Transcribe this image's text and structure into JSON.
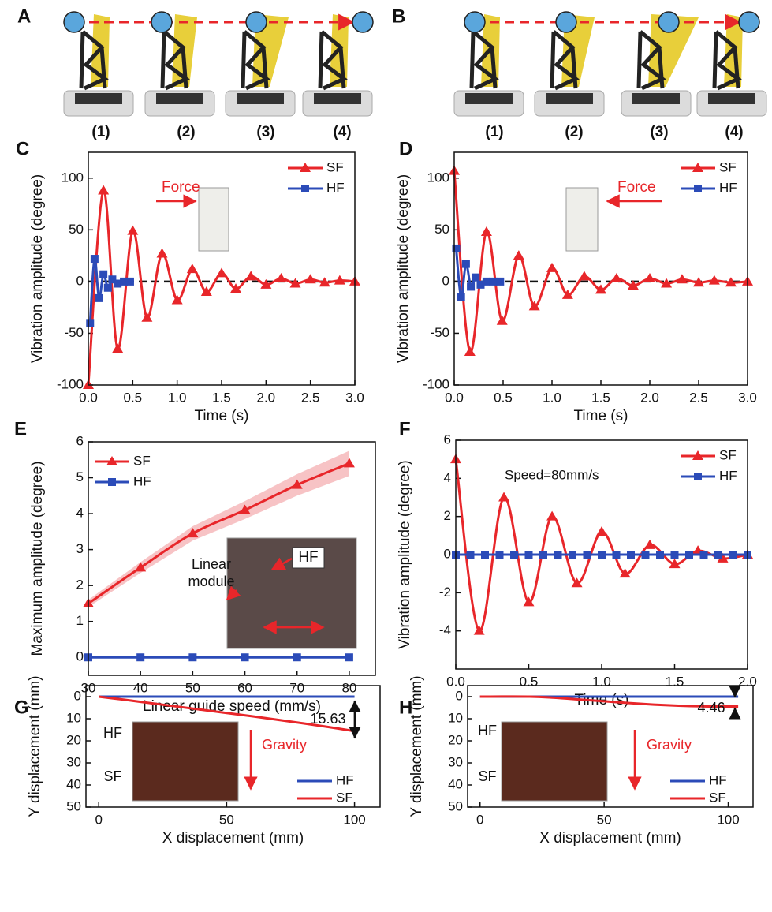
{
  "photo_panels": [
    {
      "label": "A",
      "steps": [
        "(1)",
        "(2)",
        "(3)",
        "(4)"
      ]
    },
    {
      "label": "B",
      "steps": [
        "(1)",
        "(2)",
        "(3)",
        "(4)"
      ]
    }
  ],
  "chart_data": [
    {
      "panel": "C",
      "type": "line",
      "xlabel": "Time (s)",
      "ylabel": "Vibration amplitude (degree)",
      "xlim": [
        0,
        3
      ],
      "xticks": [
        {
          "value": 0,
          "label": "0.0"
        },
        0.5,
        {
          "value": 1,
          "label": "1.0"
        },
        1.5,
        {
          "value": 2,
          "label": "2.0"
        },
        2.5,
        {
          "value": 3,
          "label": "3.0"
        }
      ],
      "ylim": [
        -100,
        125
      ],
      "yticks": [
        -100,
        -50,
        0,
        50,
        100
      ],
      "zero_line": true,
      "legend": "upper right",
      "series": [
        {
          "name": "SF",
          "color": "#e8262a",
          "marker": "triangle",
          "x": [
            0,
            0.17,
            0.33,
            0.5,
            0.66,
            0.83,
            1.0,
            1.17,
            1.33,
            1.5,
            1.66,
            1.83,
            2.0,
            2.17,
            2.33,
            2.5,
            2.66,
            2.83,
            3.0
          ],
          "values": [
            -100,
            88,
            -65,
            49,
            -35,
            27,
            -18,
            12,
            -10,
            8,
            -7,
            5,
            -3,
            3,
            -2,
            2,
            -1,
            1,
            0
          ]
        },
        {
          "name": "HF",
          "color": "#2b4bb8",
          "marker": "square",
          "x": [
            0.02,
            0.07,
            0.12,
            0.17,
            0.22,
            0.27,
            0.33,
            0.4,
            0.47
          ],
          "values": [
            -40,
            22,
            -16,
            7,
            -6,
            2,
            -2,
            0,
            0
          ]
        }
      ],
      "annotations": [
        "Force"
      ]
    },
    {
      "panel": "D",
      "type": "line",
      "xlabel": "Time (s)",
      "ylabel": "Vibration amplitude (degree)",
      "xlim": [
        0,
        3
      ],
      "xticks": [
        {
          "value": 0,
          "label": "0.0"
        },
        0.5,
        {
          "value": 1,
          "label": "1.0"
        },
        1.5,
        {
          "value": 2,
          "label": "2.0"
        },
        2.5,
        {
          "value": 3,
          "label": "3.0"
        }
      ],
      "ylim": [
        -100,
        125
      ],
      "yticks": [
        -100,
        -50,
        0,
        50,
        100
      ],
      "zero_line": true,
      "legend": "upper right",
      "series": [
        {
          "name": "SF",
          "color": "#e8262a",
          "marker": "triangle",
          "x": [
            0,
            0.16,
            0.33,
            0.49,
            0.66,
            0.82,
            1.0,
            1.16,
            1.33,
            1.5,
            1.66,
            1.83,
            2.0,
            2.17,
            2.33,
            2.5,
            2.66,
            2.83,
            3.0
          ],
          "values": [
            107,
            -68,
            48,
            -38,
            25,
            -24,
            13,
            -13,
            5,
            -8,
            3,
            -4,
            3,
            -2,
            2,
            -1,
            1,
            -1,
            0
          ]
        },
        {
          "name": "HF",
          "color": "#2b4bb8",
          "marker": "square",
          "x": [
            0.02,
            0.07,
            0.12,
            0.17,
            0.22,
            0.27,
            0.33,
            0.4,
            0.47
          ],
          "values": [
            32,
            -15,
            17,
            -5,
            4,
            -3,
            0,
            0,
            0
          ]
        }
      ],
      "annotations": [
        "Force"
      ]
    },
    {
      "panel": "E",
      "type": "line",
      "xlabel": "Linear guide speed (mm/s)",
      "ylabel": "Maximum amplitude (degree)",
      "xlim": [
        30,
        85
      ],
      "xticks": [
        30,
        40,
        50,
        60,
        70,
        80
      ],
      "ylim": [
        -0.5,
        6
      ],
      "yticks": [
        0,
        1,
        2,
        3,
        4,
        5,
        6
      ],
      "zero_line": false,
      "legend": "upper left",
      "series": [
        {
          "name": "SF",
          "color": "#e8262a",
          "band_color": "#f3a9ad",
          "marker": "triangle",
          "x": [
            30,
            40,
            50,
            60,
            70,
            80
          ],
          "values": [
            1.5,
            2.5,
            3.45,
            4.1,
            4.8,
            5.4
          ],
          "errors": [
            0.1,
            0.15,
            0.2,
            0.25,
            0.3,
            0.35
          ]
        },
        {
          "name": "HF",
          "color": "#2b4bb8",
          "marker": "square",
          "x": [
            30,
            40,
            50,
            60,
            70,
            80
          ],
          "values": [
            0,
            0,
            0,
            0,
            0,
            0
          ]
        }
      ],
      "annotations": [
        "HF",
        "Linear",
        "module"
      ]
    },
    {
      "panel": "F",
      "type": "line",
      "xlabel": "Time (s)",
      "ylabel": "Vibration amplitude (degree)",
      "xlim": [
        0,
        2
      ],
      "xticks": [
        {
          "value": 0,
          "label": "0.0"
        },
        0.5,
        {
          "value": 1,
          "label": "1.0"
        },
        1.5,
        {
          "value": 2,
          "label": "2.0"
        }
      ],
      "ylim": [
        -6,
        6
      ],
      "yticks": [
        -4,
        -2,
        0,
        2,
        4,
        6
      ],
      "zero_line": false,
      "legend": "upper right",
      "series": [
        {
          "name": "SF",
          "color": "#e8262a",
          "marker": "triangle",
          "x": [
            0,
            0.16,
            0.33,
            0.5,
            0.66,
            0.83,
            1.0,
            1.16,
            1.33,
            1.5,
            1.66,
            1.83,
            2.0
          ],
          "values": [
            5,
            -4,
            3,
            -2.5,
            2,
            -1.5,
            1.2,
            -1,
            0.5,
            -0.5,
            0.2,
            -0.2,
            0
          ]
        },
        {
          "name": "HF",
          "color": "#2b4bb8",
          "marker": "square",
          "x": [
            0,
            0.1,
            0.2,
            0.3,
            0.4,
            0.5,
            0.6,
            0.7,
            0.8,
            0.9,
            1.0,
            1.1,
            1.2,
            1.3,
            1.4,
            1.5,
            1.6,
            1.7,
            1.8,
            1.9,
            2.0
          ],
          "values": [
            0,
            0,
            0,
            0,
            0,
            0,
            0,
            0,
            0,
            0,
            0,
            0,
            0,
            0,
            0,
            0,
            0,
            0,
            0,
            0,
            0
          ]
        }
      ],
      "annotations": [
        "Speed=80mm/s"
      ]
    },
    {
      "panel": "G",
      "type": "line",
      "xlabel": "X displacement (mm)",
      "ylabel": "Y displacement (mm)",
      "xlim": [
        -5,
        110
      ],
      "xticks": [
        0,
        50,
        100
      ],
      "ylim": [
        -5,
        50
      ],
      "yticks": [
        0,
        10,
        20,
        30,
        40,
        50
      ],
      "invert_y": true,
      "zero_line": false,
      "legend": "lower right",
      "series": [
        {
          "name": "HF",
          "color": "#2b4bb8",
          "marker": "none",
          "x": [
            0,
            100
          ],
          "values": [
            0,
            0
          ]
        },
        {
          "name": "SF",
          "color": "#e8262a",
          "marker": "none",
          "x": [
            0,
            10,
            20,
            30,
            40,
            50,
            60,
            70,
            80,
            90,
            100
          ],
          "values": [
            0,
            1.4,
            2.9,
            4.4,
            5.9,
            7.4,
            8.9,
            10.5,
            12.1,
            13.8,
            15.63
          ]
        }
      ],
      "annotations": [
        "HF",
        "SF",
        "Gravity",
        "15.63"
      ]
    },
    {
      "panel": "H",
      "type": "line",
      "xlabel": "X displacement (mm)",
      "ylabel": "Y displacement (mm)",
      "xlim": [
        -5,
        110
      ],
      "xticks": [
        0,
        50,
        100
      ],
      "ylim": [
        -5,
        50
      ],
      "yticks": [
        0,
        10,
        20,
        30,
        40,
        50
      ],
      "invert_y": true,
      "zero_line": false,
      "legend": "lower right",
      "series": [
        {
          "name": "HF",
          "color": "#2b4bb8",
          "marker": "none",
          "x": [
            0,
            104
          ],
          "values": [
            0,
            0
          ]
        },
        {
          "name": "SF",
          "color": "#e8262a",
          "marker": "none",
          "x": [
            0,
            20,
            30,
            40,
            50,
            60,
            70,
            80,
            90,
            100,
            104
          ],
          "values": [
            0,
            0,
            0.5,
            1.3,
            2.1,
            2.9,
            3.6,
            4.1,
            4.4,
            4.46,
            4.46
          ]
        }
      ],
      "annotations": [
        "HF",
        "SF",
        "Gravity",
        "4.46"
      ]
    }
  ]
}
